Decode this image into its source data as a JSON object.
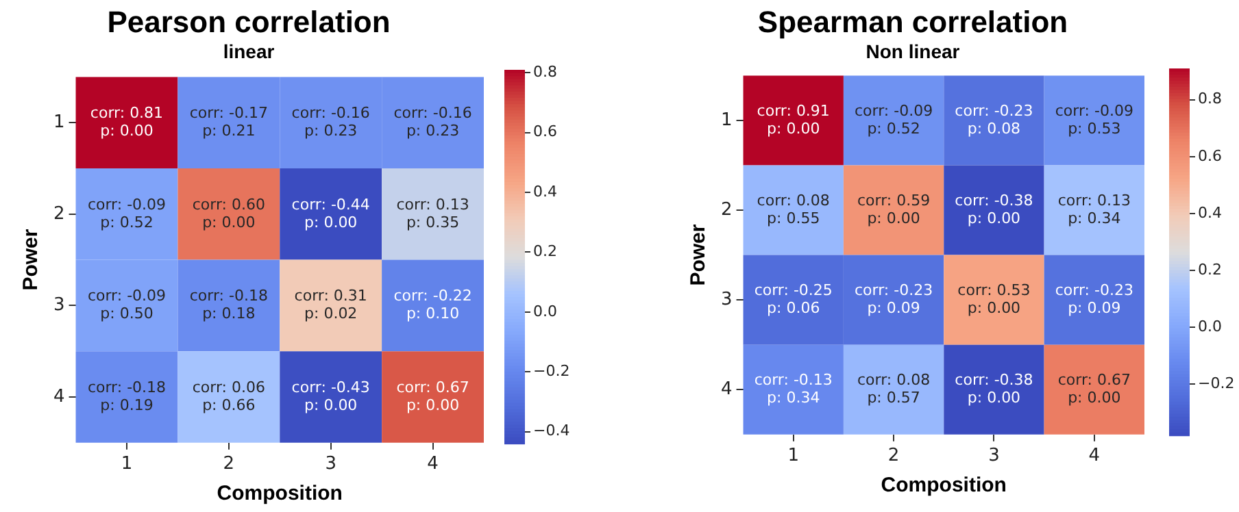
{
  "chart_data": [
    {
      "type": "heatmap",
      "title": "Pearson correlation",
      "subtitle": "linear",
      "xlabel": "Composition",
      "ylabel": "Power",
      "categories": [
        "1",
        "2",
        "3",
        "4"
      ],
      "y_categories": [
        "1",
        "2",
        "3",
        "4"
      ],
      "cells": [
        [
          0.81,
          -0.17,
          -0.16,
          -0.16
        ],
        [
          -0.09,
          0.6,
          -0.44,
          0.13
        ],
        [
          -0.09,
          -0.18,
          0.31,
          -0.22
        ],
        [
          -0.18,
          0.06,
          -0.43,
          0.67
        ]
      ],
      "cell_labels": [
        [
          "corr: 0.81\np: 0.00",
          "corr: -0.17\np: 0.21",
          "corr: -0.16\np: 0.23",
          "corr: -0.16\np: 0.23"
        ],
        [
          "corr: -0.09\np: 0.52",
          "corr: 0.60\np: 0.00",
          "corr: -0.44\np: 0.00",
          "corr: 0.13\np: 0.35"
        ],
        [
          "corr: -0.09\np: 0.50",
          "corr: -0.18\np: 0.18",
          "corr: 0.31\np: 0.02",
          "corr: -0.22\np: 0.10"
        ],
        [
          "corr: -0.18\np: 0.19",
          "corr: 0.06\np: 0.66",
          "corr: -0.43\np: 0.00",
          "corr: 0.67\np: 0.00"
        ]
      ],
      "clim": [
        -0.44,
        0.81
      ],
      "cticks": [
        {
          "value": -0.4,
          "label": "−0.4"
        },
        {
          "value": -0.2,
          "label": "−0.2"
        },
        {
          "value": 0,
          "label": "0.0"
        },
        0.2,
        0.4,
        0.6,
        0.8
      ]
    },
    {
      "type": "heatmap",
      "title": "Spearman correlation",
      "subtitle": "Non linear",
      "xlabel": "Composition",
      "ylabel": "Power",
      "categories": [
        "1",
        "2",
        "3",
        "4"
      ],
      "y_categories": [
        "1",
        "2",
        "3",
        "4"
      ],
      "cells": [
        [
          0.91,
          -0.09,
          -0.23,
          -0.09
        ],
        [
          0.08,
          0.59,
          -0.38,
          0.13
        ],
        [
          -0.25,
          -0.23,
          0.53,
          -0.23
        ],
        [
          -0.13,
          0.08,
          -0.38,
          0.67
        ]
      ],
      "cell_labels": [
        [
          "corr: 0.91\np: 0.00",
          "corr: -0.09\np: 0.52",
          "corr: -0.23\np: 0.08",
          "corr: -0.09\np: 0.53"
        ],
        [
          "corr: 0.08\np: 0.55",
          "corr: 0.59\np: 0.00",
          "corr: -0.38\np: 0.00",
          "corr: 0.13\np: 0.34"
        ],
        [
          "corr: -0.25\np: 0.06",
          "corr: -0.23\np: 0.09",
          "corr: 0.53\np: 0.00",
          "corr: -0.23\np: 0.09"
        ],
        [
          "corr: -0.13\np: 0.34",
          "corr: 0.08\np: 0.57",
          "corr: -0.38\np: 0.00",
          "corr: 0.67\np: 0.00"
        ]
      ],
      "clim": [
        -0.38,
        0.91
      ],
      "cticks": [
        {
          "value": -0.2,
          "label": "−0.2"
        },
        {
          "value": 0,
          "label": "0.0"
        },
        0.2,
        0.4,
        0.6,
        0.8
      ]
    }
  ]
}
